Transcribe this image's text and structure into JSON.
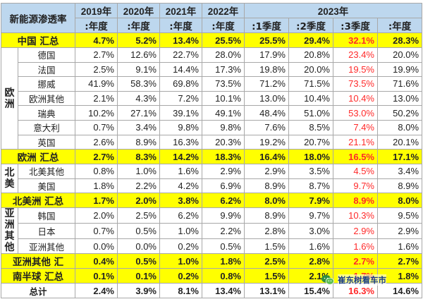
{
  "header": {
    "title": "新能源渗透率",
    "years": [
      "2019年",
      "2020年",
      "2021年",
      "2022年"
    ],
    "year_2023": "2023年",
    "subs": [
      ":年度",
      ":年度",
      ":年度",
      ":年度",
      ":1季度",
      ":2季度",
      ":3季度",
      ":年度"
    ]
  },
  "china": {
    "label": "中国 汇总",
    "values": [
      "4.7%",
      "5.2%",
      "13.4%",
      "25.5%",
      "25.5%",
      "29.4%",
      "32.1%",
      "28.3%"
    ]
  },
  "europe": {
    "region": "欧洲",
    "rows": [
      {
        "name": "德国",
        "values": [
          "2.7%",
          "12.6%",
          "22.7%",
          "28.0%",
          "17.9%",
          "20.8%",
          "23.4%",
          "20.0%"
        ]
      },
      {
        "name": "法国",
        "values": [
          "2.5%",
          "9.1%",
          "14.4%",
          "17.3%",
          "19.8%",
          "20.0%",
          "19.5%",
          "19.9%"
        ]
      },
      {
        "name": "挪威",
        "values": [
          "41.9%",
          "58.3%",
          "69.8%",
          "73.5%",
          "71.2%",
          "71.5%",
          "73.5%",
          "71.6%"
        ]
      },
      {
        "name": "欧洲其他",
        "values": [
          "2.1%",
          "4.3%",
          "7.2%",
          "10.1%",
          "13.0%",
          "10.4%",
          "10.4%",
          "13.0%"
        ]
      },
      {
        "name": "瑞典",
        "values": [
          "10.2%",
          "27.1%",
          "39.1%",
          "49.1%",
          "48.4%",
          "51.0%",
          "53.0%",
          "50.2%"
        ]
      },
      {
        "name": "意大利",
        "values": [
          "0.7%",
          "3.4%",
          "9.8%",
          "9.8%",
          "7.6%",
          "8.5%",
          "7.4%",
          "8.0%"
        ]
      },
      {
        "name": "英国",
        "values": [
          "2.6%",
          "8.9%",
          "16.3%",
          "20.3%",
          "19.2%",
          "20.7%",
          "21.1%",
          "20.1%"
        ]
      }
    ],
    "sum": {
      "label": "欧洲 汇总",
      "values": [
        "2.7%",
        "8.3%",
        "14.2%",
        "18.3%",
        "16.4%",
        "18.0%",
        "16.5%",
        "17.1%"
      ]
    }
  },
  "namerica": {
    "region": "北美",
    "rows": [
      {
        "name": "北美其他",
        "values": [
          "0.8%",
          "1.0%",
          "1.6%",
          "2.9%",
          "2.9%",
          "3.5%",
          "4.5%",
          "3.4%"
        ]
      },
      {
        "name": "美国",
        "values": [
          "1.8%",
          "2.2%",
          "4.2%",
          "6.9%",
          "8.9%",
          "8.7%",
          "9.7%",
          "8.9%"
        ]
      }
    ],
    "sum": {
      "label": "北美洲 汇总",
      "values": [
        "1.7%",
        "2.0%",
        "3.8%",
        "6.2%",
        "8.0%",
        "7.9%",
        "8.9%",
        "8.0%"
      ]
    }
  },
  "asia": {
    "region": "亚洲其他",
    "rows": [
      {
        "name": "韩国",
        "values": [
          "2.0%",
          "2.5%",
          "6.2%",
          "9.9%",
          "8.9%",
          "9.7%",
          "10.3%",
          "9.5%"
        ]
      },
      {
        "name": "日本",
        "values": [
          "0.7%",
          "0.5%",
          "1.0%",
          "2.2%",
          "2.8%",
          "3.0%",
          "2.9%",
          "2.9%"
        ]
      },
      {
        "name": "亚洲其他",
        "values": [
          "0.0%",
          "0.0%",
          "0.2%",
          "0.5%",
          "1.5%",
          "1.6%",
          "1.6%",
          "1.6%"
        ]
      }
    ],
    "sum": {
      "label": "亚洲其他 汇",
      "values": [
        "0.4%",
        "0.5%",
        "1.0%",
        "1.8%",
        "2.5%",
        "2.8%",
        "2.7%",
        "2.7%"
      ]
    }
  },
  "south": {
    "label": "南半球 汇总",
    "values": [
      "0.1%",
      "0.1%",
      "0.2%",
      "0.8%",
      "1.5%",
      "2.1%",
      "1.7%",
      "1.8%"
    ]
  },
  "total": {
    "label": "总计",
    "values": [
      "2.4%",
      "3.9%",
      "8.1%",
      "13.4%",
      "13.1%",
      "15.4%",
      "16.3%",
      "14.6%"
    ]
  },
  "watermark": {
    "text": "崔东树看车市",
    "icon": "wechat-icon"
  },
  "colors": {
    "header_bg": "#bdd7ee",
    "summary_bg": "#ffff00",
    "q3_text": "#ff2a2a",
    "border": "#a8a8a8"
  }
}
